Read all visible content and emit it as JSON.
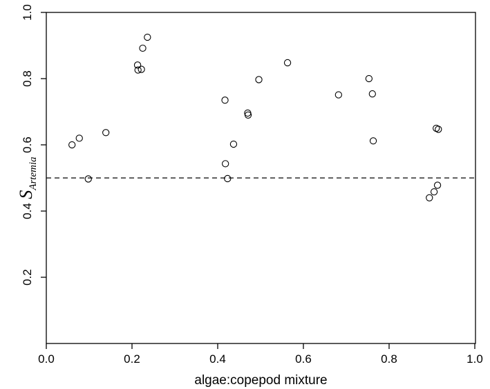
{
  "chart_data": {
    "type": "scatter",
    "xlabel": "algae:copepod mixture",
    "ylabel_main": "S",
    "ylabel_sub": "Artemia",
    "xlim": [
      0.0,
      1.0
    ],
    "ylim": [
      0.0,
      1.0
    ],
    "x_ticks": [
      0.0,
      0.2,
      0.4,
      0.6,
      0.8,
      1.0
    ],
    "x_tick_labels": [
      "0.0",
      "0.2",
      "0.4",
      "0.6",
      "0.8",
      "1.0"
    ],
    "y_ticks": [
      0.2,
      0.4,
      0.6,
      0.8,
      1.0
    ],
    "y_tick_labels": [
      "0.2",
      "0.4",
      "0.6",
      "0.8",
      "1.0"
    ],
    "reference_line": {
      "y": 0.5,
      "style": "dashed"
    },
    "marker": "open-circle",
    "grid": false,
    "points": [
      {
        "x": 0.06,
        "y": 0.6
      },
      {
        "x": 0.077,
        "y": 0.62
      },
      {
        "x": 0.098,
        "y": 0.497
      },
      {
        "x": 0.139,
        "y": 0.637
      },
      {
        "x": 0.213,
        "y": 0.841
      },
      {
        "x": 0.214,
        "y": 0.826
      },
      {
        "x": 0.222,
        "y": 0.828
      },
      {
        "x": 0.225,
        "y": 0.892
      },
      {
        "x": 0.236,
        "y": 0.925
      },
      {
        "x": 0.417,
        "y": 0.735
      },
      {
        "x": 0.418,
        "y": 0.543
      },
      {
        "x": 0.423,
        "y": 0.498
      },
      {
        "x": 0.437,
        "y": 0.602
      },
      {
        "x": 0.47,
        "y": 0.696
      },
      {
        "x": 0.471,
        "y": 0.69
      },
      {
        "x": 0.496,
        "y": 0.797
      },
      {
        "x": 0.563,
        "y": 0.848
      },
      {
        "x": 0.682,
        "y": 0.751
      },
      {
        "x": 0.753,
        "y": 0.8
      },
      {
        "x": 0.761,
        "y": 0.754
      },
      {
        "x": 0.763,
        "y": 0.612
      },
      {
        "x": 0.894,
        "y": 0.44
      },
      {
        "x": 0.905,
        "y": 0.458
      },
      {
        "x": 0.91,
        "y": 0.65
      },
      {
        "x": 0.913,
        "y": 0.478
      },
      {
        "x": 0.915,
        "y": 0.647
      }
    ]
  }
}
